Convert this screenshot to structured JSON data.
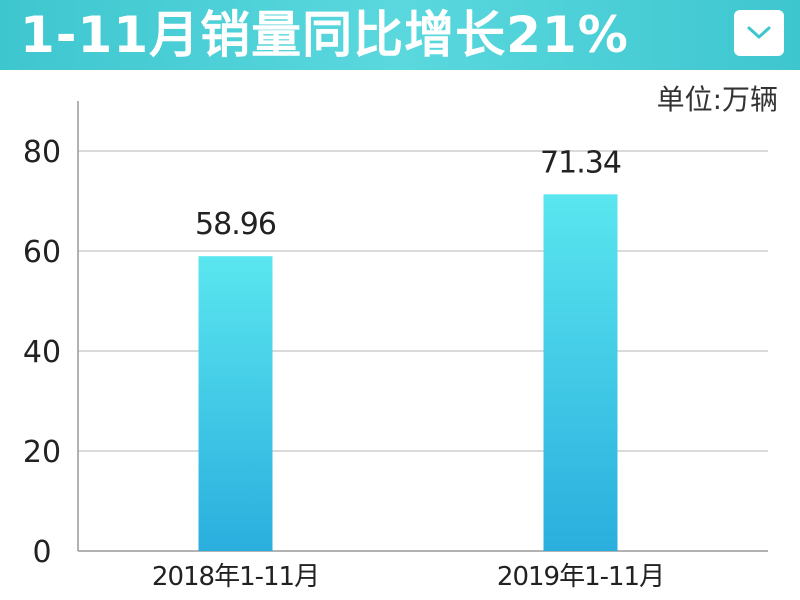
{
  "banner": {
    "title": "1-11月销量同比增长21%",
    "background_color": "#47cdd5",
    "dropdown_icon": "chevron-down-icon"
  },
  "unit_label": "单位:万辆",
  "chart_data": {
    "type": "bar",
    "title": "1-11月销量同比增长21%",
    "unit": "单位:万辆",
    "categories": [
      "2018年1-11月",
      "2019年1-11月"
    ],
    "values": [
      58.96,
      71.34
    ],
    "value_labels": [
      "58.96",
      "71.34"
    ],
    "y_ticks": [
      "0",
      "20",
      "40",
      "60",
      "80"
    ],
    "ylim": [
      0,
      90
    ],
    "grid": true,
    "legend": "none",
    "bar_color_top": "#5ae6ef",
    "bar_color_bottom": "#2aaede"
  }
}
